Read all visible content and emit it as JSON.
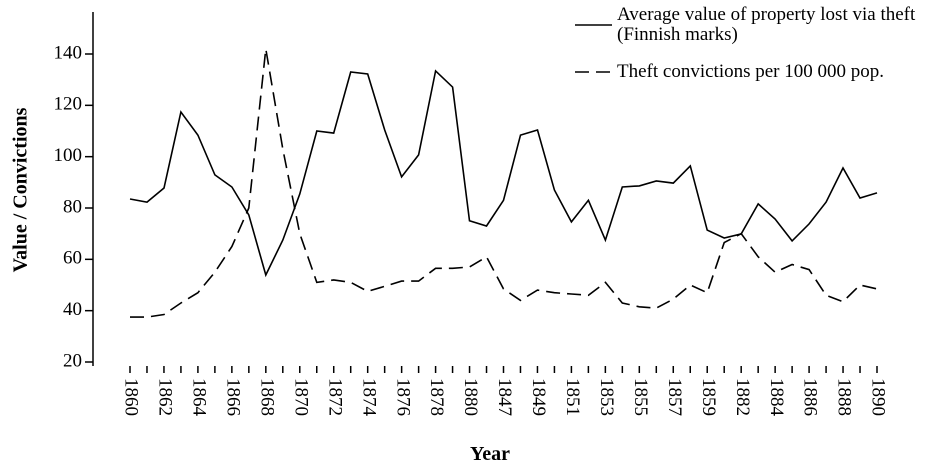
{
  "chart_data": {
    "type": "line",
    "x_label": "Year",
    "y_label": "Value / Convictions",
    "categories": [
      "1860",
      null,
      "1862",
      null,
      "1864",
      null,
      "1866",
      null,
      "1868",
      null,
      "1870",
      null,
      "1872",
      null,
      "1874",
      null,
      "1876",
      null,
      "1878",
      null,
      "1880",
      null,
      "1847",
      null,
      "1849",
      null,
      "1851",
      null,
      "1853",
      null,
      "1855",
      null,
      "1857",
      null,
      "1859",
      null,
      "1882",
      null,
      "1884",
      null,
      "1886",
      null,
      "1888",
      null,
      "1890"
    ],
    "series": [
      {
        "name": "Average value of property lost via theft (Finnish marks)",
        "color": "#000000",
        "dash": "solid",
        "values": [
          83.5,
          82.3,
          87.8,
          117.4,
          108.4,
          92.9,
          88.2,
          77.3,
          53.9,
          67.5,
          85.5,
          110,
          109.2,
          133,
          132.2,
          110.4,
          92.1,
          100.7,
          133.4,
          127.1,
          75,
          73,
          83,
          108.4,
          110.4,
          87,
          74.6,
          83,
          67.5,
          88.2,
          88.6,
          90.5,
          89.7,
          96.4,
          71.4,
          68.3,
          69.9,
          81.6,
          75.7,
          67.2,
          73.8,
          82.3,
          95.6,
          83.9,
          85.9
        ]
      },
      {
        "name": "Theft convictions per 100 000 pop.",
        "color": "#000000",
        "dash": "dashed",
        "values": [
          37.5,
          37.5,
          38.5,
          43,
          47,
          55,
          65,
          80,
          142,
          103,
          70,
          51,
          52,
          51,
          47.5,
          49.5,
          51.5,
          51.5,
          56.5,
          56.5,
          57,
          61,
          48.5,
          44,
          48,
          47,
          46.5,
          46,
          51,
          43,
          41.5,
          41,
          44.5,
          50,
          47,
          66.5,
          70,
          61,
          55,
          58,
          56,
          46,
          43.5,
          50,
          48.5
        ]
      }
    ],
    "ylim": [
      20,
      155
    ],
    "yticks": [
      20,
      40,
      60,
      80,
      100,
      120,
      140
    ],
    "grid": false,
    "legend": "top-right"
  }
}
